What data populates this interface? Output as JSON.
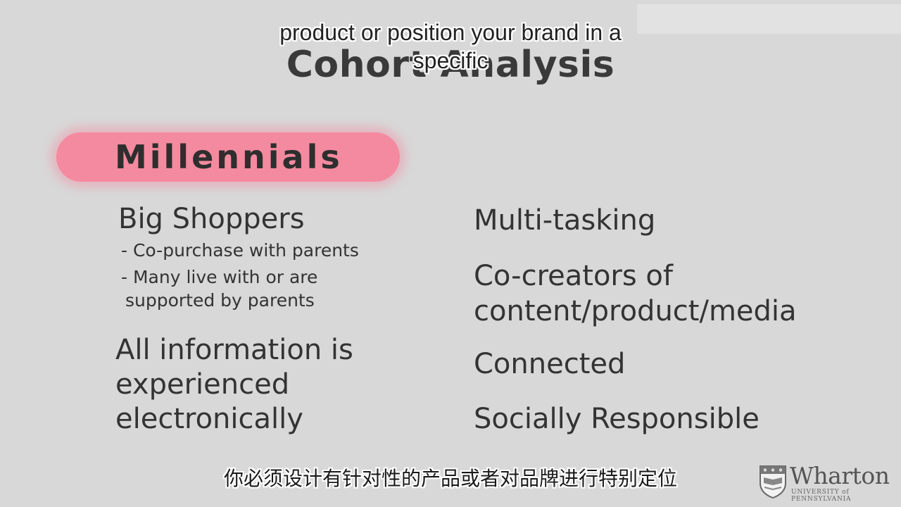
{
  "slide": {
    "title": "Cohort Analysis",
    "category_label": "Millennials",
    "left_column": {
      "heading1": "Big Shoppers",
      "bullet1": "- Co-purchase with parents",
      "bullet2_line1": "- Many live with or are",
      "bullet2_line2": "supported by parents",
      "heading2_line1": "All information is",
      "heading2_line2": "experienced",
      "heading2_line3": "electronically"
    },
    "right_column": {
      "item1": "Multi-tasking",
      "item2_line1": "Co-creators of",
      "item2_line2": "content/product/media",
      "item3": "Connected",
      "item4": "Socially Responsible"
    }
  },
  "captions": {
    "english_line1": "product or position your brand in a",
    "english_line2": "specific",
    "chinese": "你必须设计有针对性的产品或者对品牌进行特别定位"
  },
  "logo": {
    "name": "Wharton",
    "subtitle": "UNIVERSITY of PENNSYLVANIA"
  },
  "colors": {
    "background": "#d8d8d8",
    "pill": "#f48a9f",
    "text": "#333333"
  }
}
